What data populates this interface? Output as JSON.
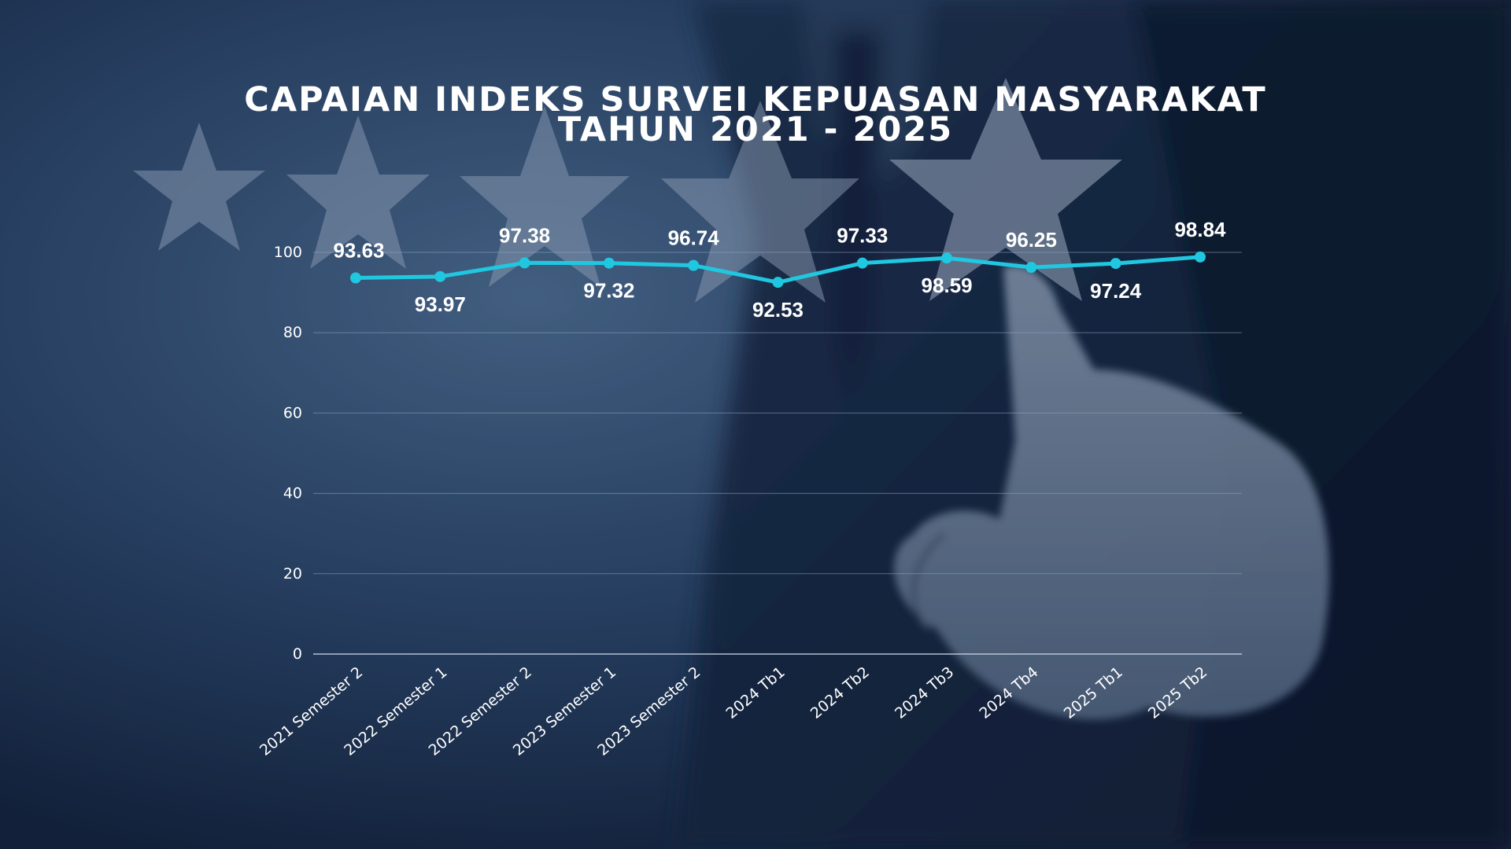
{
  "chart_data": {
    "type": "line",
    "title": "CAPAIAN INDEKS SURVEI KEPUASAN MASYARAKAT",
    "subtitle": "TAHUN 2021 - 2025",
    "xlabel": "",
    "ylabel": "",
    "categories": [
      "2021 Semester 2",
      "2022 Semester 1",
      "2022 Semester 2",
      "2023 Semester 1",
      "2023 Semester 2",
      "2024 Tb1",
      "2024 Tb2",
      "2024 Tb3",
      "2024 Tb4",
      "2025 Tb1",
      "2025 Tb2"
    ],
    "series": [
      {
        "values": [
          93.63,
          93.97,
          97.38,
          97.32,
          96.74,
          92.53,
          97.33,
          98.59,
          96.25,
          97.24,
          98.84
        ]
      }
    ],
    "yticks": [
      0,
      20,
      40,
      60,
      80,
      100
    ],
    "ylim": [
      0,
      100
    ],
    "grid": true,
    "legend": "none",
    "colors": {
      "line": "#1fc8e0",
      "text": "#ffffff",
      "grid": "#8fa6c4"
    }
  }
}
